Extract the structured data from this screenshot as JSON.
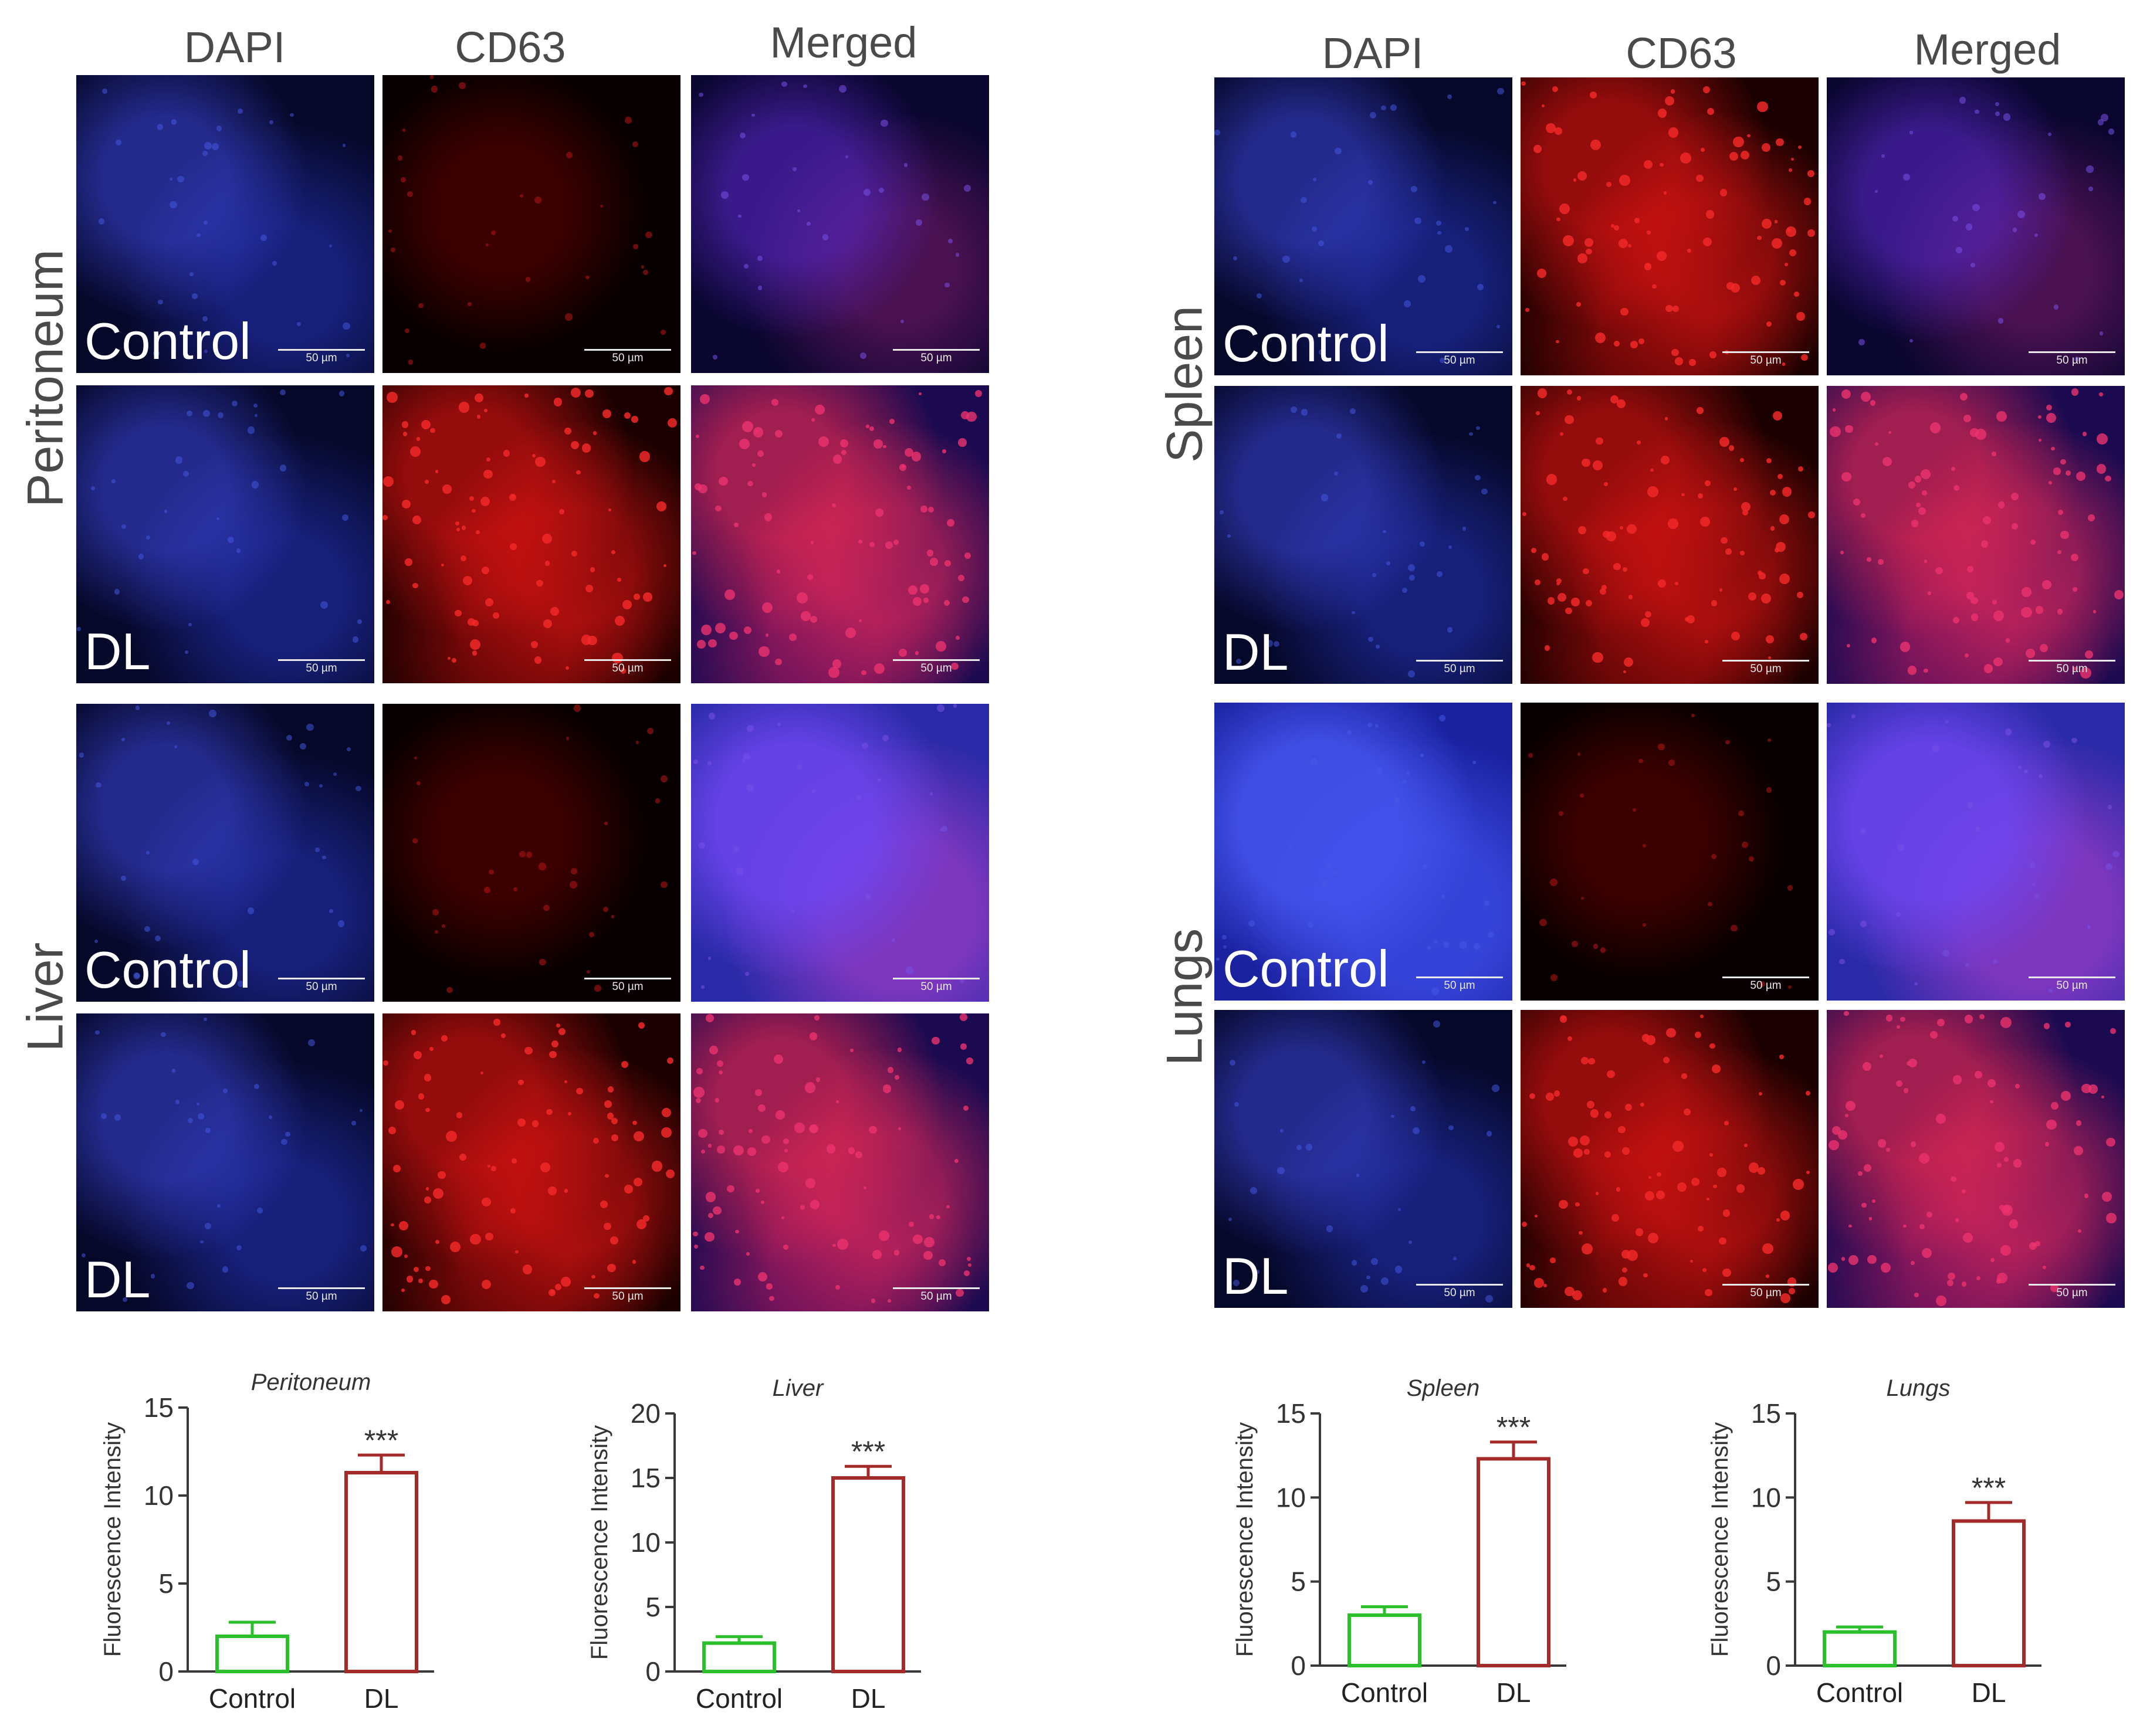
{
  "figure": {
    "columns": [
      "DAPI",
      "CD63",
      "Merged"
    ],
    "scale_bar": "50 µm",
    "panels": [
      {
        "tissue": "Peritoneum",
        "rows": [
          "Control",
          "DL"
        ]
      },
      {
        "tissue": "Liver",
        "rows": [
          "Control",
          "DL"
        ]
      },
      {
        "tissue": "Spleen",
        "rows": [
          "Control",
          "DL"
        ]
      },
      {
        "tissue": "Lungs",
        "rows": [
          "Control",
          "DL"
        ]
      }
    ]
  },
  "colors": {
    "control": "#2bbf2b",
    "dl": "#a52a2a",
    "axis": "#3a3a3a"
  },
  "chart_data": [
    {
      "type": "bar",
      "title": "Peritoneum",
      "ylabel": "Fluorescence Intensity",
      "categories": [
        "Control",
        "DL"
      ],
      "values": [
        2.0,
        11.3
      ],
      "errors": [
        0.8,
        1.0
      ],
      "significance": [
        "",
        "***"
      ],
      "ylim": [
        0,
        15
      ],
      "yticks": [
        0,
        5,
        10,
        15
      ]
    },
    {
      "type": "bar",
      "title": "Liver",
      "ylabel": "Fluorescence Intensity",
      "categories": [
        "Control",
        "DL"
      ],
      "values": [
        2.2,
        15.0
      ],
      "errors": [
        0.5,
        0.9
      ],
      "significance": [
        "",
        "***"
      ],
      "ylim": [
        0,
        20
      ],
      "yticks": [
        0,
        5,
        10,
        15,
        20
      ]
    },
    {
      "type": "bar",
      "title": "Spleen",
      "ylabel": "Fluorescence Intensity",
      "categories": [
        "Control",
        "DL"
      ],
      "values": [
        3.0,
        12.3
      ],
      "errors": [
        0.5,
        1.0
      ],
      "significance": [
        "",
        "***"
      ],
      "ylim": [
        0,
        15
      ],
      "yticks": [
        0,
        5,
        10,
        15
      ]
    },
    {
      "type": "bar",
      "title": "Lungs",
      "ylabel": "Fluorescence Intensity",
      "categories": [
        "Control",
        "DL"
      ],
      "values": [
        2.0,
        8.6
      ],
      "errors": [
        0.3,
        1.1
      ],
      "significance": [
        "",
        "***"
      ],
      "ylim": [
        0,
        15
      ],
      "yticks": [
        0,
        5,
        10,
        15
      ]
    }
  ]
}
